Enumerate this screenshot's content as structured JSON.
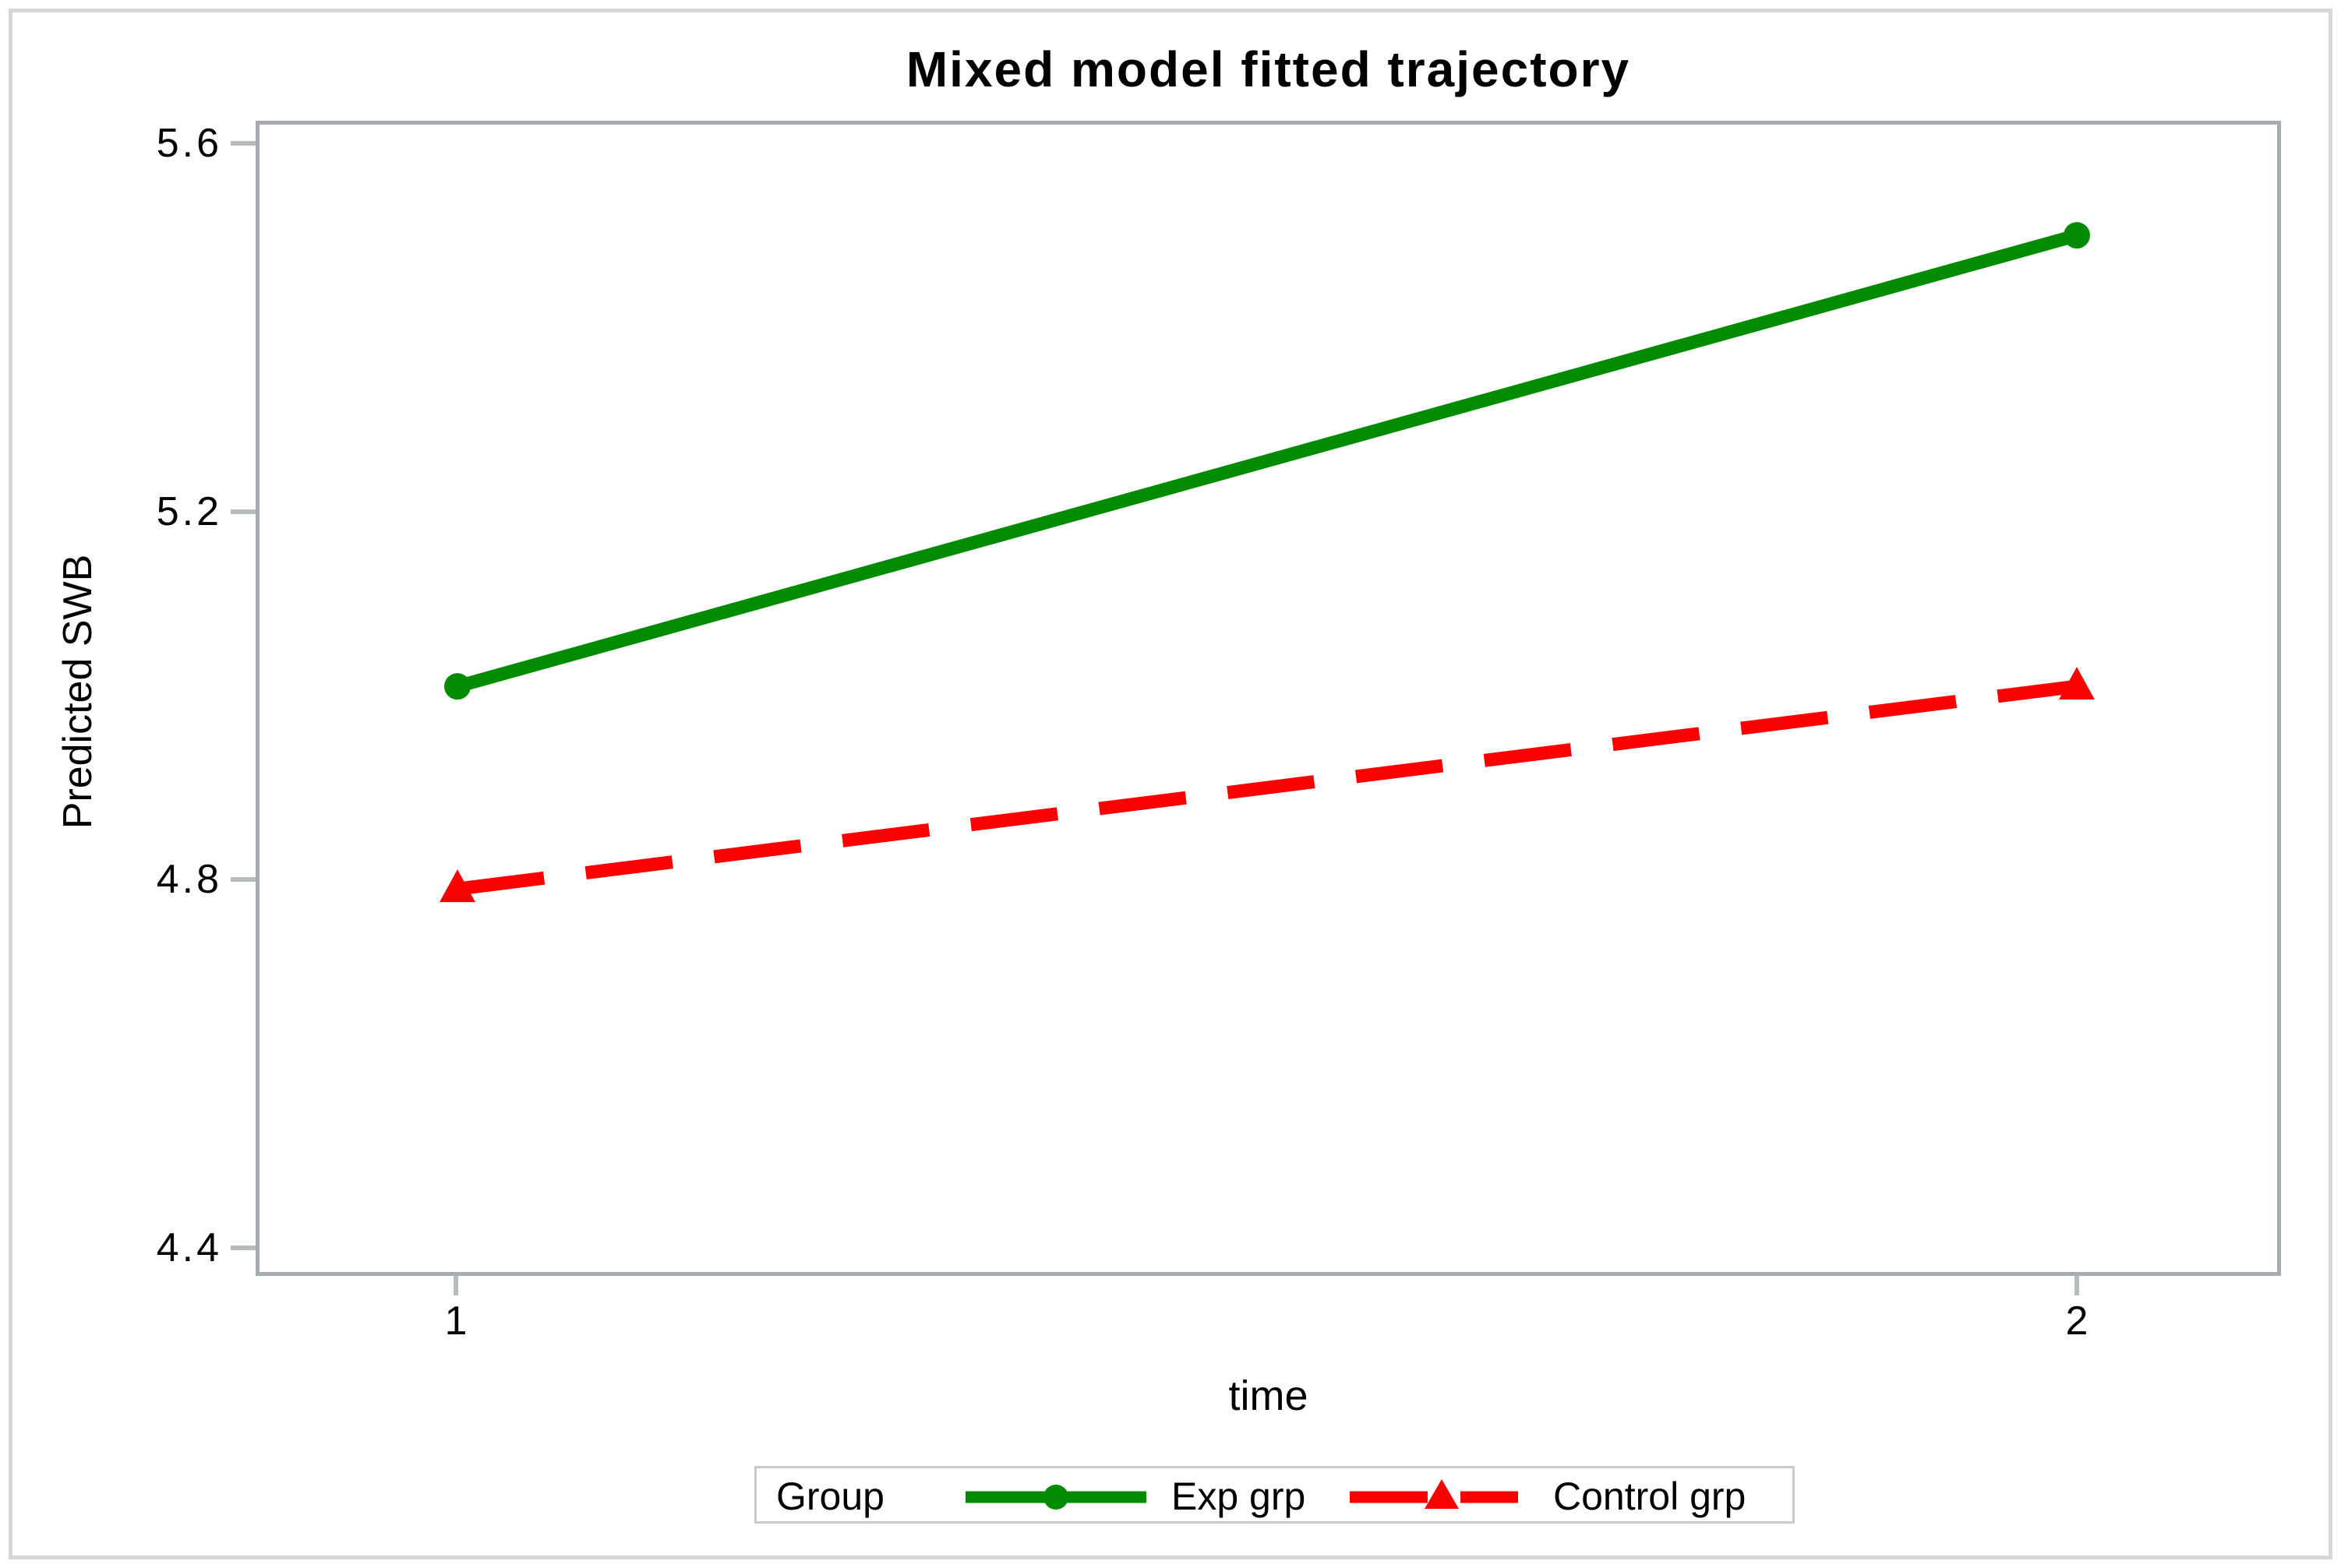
{
  "chart_data": {
    "type": "line",
    "title": "Mixed model fitted trajectory",
    "xlabel": "time",
    "ylabel": "Predicted SWB",
    "x": [
      1,
      2
    ],
    "xtick_labels": [
      "1",
      "2"
    ],
    "ytick_labels": [
      "5.6",
      "5.2",
      "4.8",
      "4.4"
    ],
    "ytick_values": [
      5.6,
      5.2,
      4.8,
      4.4
    ],
    "ylim": [
      4.37,
      5.63
    ],
    "grid": "off",
    "series": [
      {
        "name": "Exp grp",
        "color": "#008b00",
        "line_style": "solid",
        "marker": "circle",
        "values": [
          5.01,
          5.5
        ]
      },
      {
        "name": "Control grp",
        "color": "#fb0000",
        "line_style": "dashed",
        "marker": "triangle",
        "values": [
          4.79,
          5.01
        ]
      }
    ],
    "legend": {
      "title": "Group",
      "position": "bottom"
    }
  }
}
